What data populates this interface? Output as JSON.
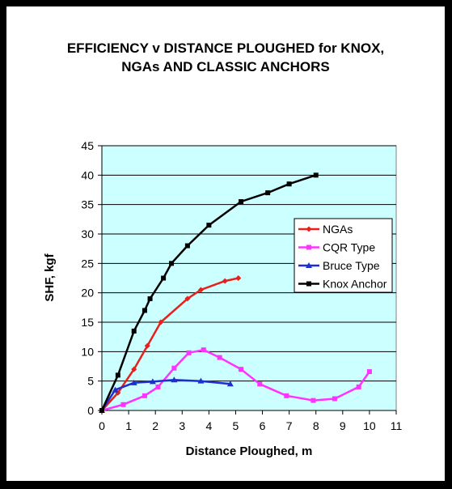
{
  "chart_data": {
    "type": "line",
    "title_lines": [
      "EFFICIENCY v DISTANCE PLOUGHED for KNOX,",
      "NGAs AND CLASSIC ANCHORS"
    ],
    "xlabel": "Distance Ploughed, m",
    "ylabel": "SHF, kgf",
    "xlim": [
      0,
      11
    ],
    "ylim": [
      0,
      45
    ],
    "x_ticks": [
      0,
      1,
      2,
      3,
      4,
      5,
      6,
      7,
      8,
      9,
      10,
      11
    ],
    "y_ticks": [
      0,
      5,
      10,
      15,
      20,
      25,
      30,
      35,
      40,
      45
    ],
    "grid": "horizontal",
    "legend_position": "right",
    "plot_background": "#ccffff",
    "series": [
      {
        "name": "NGAs",
        "color": "#e8201c",
        "marker": "diamond",
        "x": [
          0,
          0.6,
          1.2,
          1.7,
          2.2,
          3.2,
          3.7,
          4.6,
          5.1
        ],
        "y": [
          0,
          3,
          7,
          11,
          15,
          19,
          20.5,
          22,
          22.5
        ]
      },
      {
        "name": "CQR Type",
        "color": "#ff33ff",
        "marker": "square",
        "x": [
          0,
          0.8,
          1.6,
          2.1,
          2.7,
          3.25,
          3.8,
          4.4,
          5.2,
          5.9,
          6.9,
          7.9,
          8.7,
          9.6,
          10
        ],
        "y": [
          0,
          1,
          2.5,
          4,
          7.2,
          9.8,
          10.3,
          9,
          7,
          4.5,
          2.5,
          1.7,
          2,
          4,
          6.6
        ]
      },
      {
        "name": "Bruce Type",
        "color": "#1f2fcf",
        "marker": "triangle",
        "x": [
          0,
          0.5,
          1.2,
          1.9,
          2.7,
          3.7,
          4.8
        ],
        "y": [
          0,
          3.5,
          4.7,
          4.9,
          5.2,
          5,
          4.5
        ]
      },
      {
        "name": "Knox Anchor",
        "color": "#000000",
        "marker": "square",
        "x": [
          0,
          0.6,
          1.2,
          1.6,
          1.8,
          2.3,
          2.6,
          3.2,
          4,
          5.2,
          6.2,
          7,
          8
        ],
        "y": [
          0,
          6,
          13.5,
          17,
          19,
          22.5,
          25,
          28,
          31.5,
          35.5,
          37,
          38.5,
          40
        ]
      }
    ]
  }
}
